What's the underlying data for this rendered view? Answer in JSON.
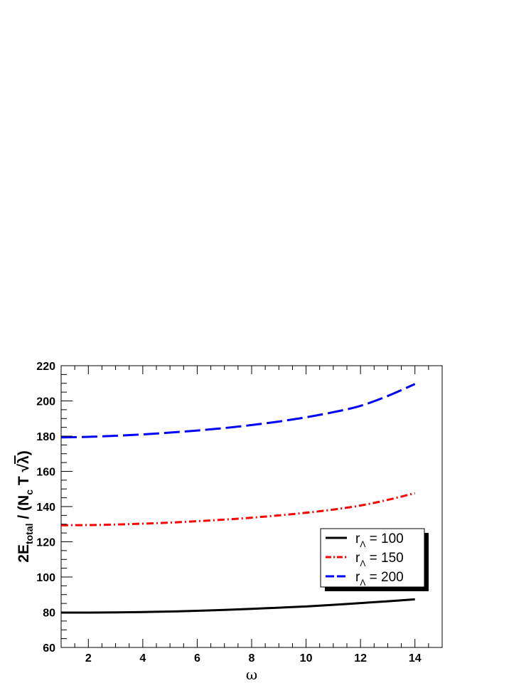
{
  "chart_data": {
    "type": "line",
    "xlabel": "ω",
    "ylabel": {
      "main": "2E",
      "sub1": "total",
      "mid": " / (N",
      "sub2": "c",
      "mid2": " T ",
      "sqrt": "λ",
      "end": ")"
    },
    "xlim": [
      1,
      15
    ],
    "ylim": [
      60,
      220
    ],
    "xticks": [
      2,
      4,
      6,
      8,
      10,
      12,
      14
    ],
    "yticks": [
      60,
      80,
      100,
      120,
      140,
      160,
      180,
      200,
      220
    ],
    "grid": false,
    "legend_position": "right",
    "series": [
      {
        "name": "r_Λ = 100",
        "label_main": "r",
        "label_sub": "Λ",
        "label_rest": " = 100",
        "color": "#000000",
        "style": "solid",
        "x": [
          1,
          2,
          3,
          4,
          5,
          6,
          7,
          8,
          9,
          10,
          11,
          12,
          13,
          14
        ],
        "y": [
          79.8,
          79.8,
          79.9,
          80.1,
          80.4,
          80.8,
          81.3,
          81.9,
          82.6,
          83.3,
          84.2,
          85.2,
          86.2,
          87.3
        ]
      },
      {
        "name": "r_Λ = 150",
        "label_main": "r",
        "label_sub": "Λ",
        "label_rest": " = 150",
        "color": "#ff0000",
        "style": "dashdot",
        "x": [
          1,
          2,
          3,
          4,
          5,
          6,
          7,
          8,
          9,
          10,
          11,
          12,
          13,
          14
        ],
        "y": [
          129.4,
          129.5,
          129.8,
          130.3,
          130.9,
          131.7,
          132.6,
          133.7,
          135.0,
          136.5,
          138.3,
          140.6,
          143.8,
          147.6
        ]
      },
      {
        "name": "r_Λ = 200",
        "label_main": "r",
        "label_sub": "Λ",
        "label_rest": " = 200",
        "color": "#0000ff",
        "style": "dashed",
        "x": [
          1,
          2,
          3,
          4,
          5,
          6,
          7,
          8,
          9,
          10,
          11,
          12,
          13,
          14
        ],
        "y": [
          179.3,
          179.6,
          180.2,
          181.0,
          182.0,
          183.2,
          184.6,
          186.3,
          188.3,
          190.7,
          193.6,
          197.2,
          202.8,
          209.6
        ]
      }
    ]
  }
}
